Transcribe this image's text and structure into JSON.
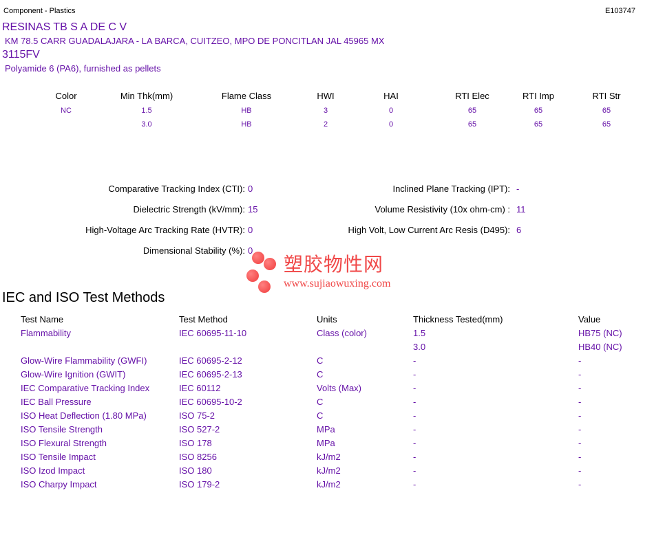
{
  "header": {
    "category": "Component - Plastics",
    "file_number": "E103747"
  },
  "company": {
    "name": "RESINAS TB S A DE C V",
    "address": "KM 78.5 CARR GUADALAJARA - LA BARCA, CUITZEO, MPO DE PONCITLAN JAL   45965 MX"
  },
  "product": {
    "grade": "3115FV",
    "description": "Polyamide 6 (PA6), furnished as pellets"
  },
  "ratings": {
    "headers": [
      "Color",
      "Min Thk(mm)",
      "Flame Class",
      "HWI",
      "HAI",
      "RTI Elec",
      "RTI Imp",
      "RTI Str"
    ],
    "rows": [
      [
        "NC",
        "1.5",
        "HB",
        "3",
        "0",
        "65",
        "65",
        "65"
      ],
      [
        "",
        "3.0",
        "HB",
        "2",
        "0",
        "65",
        "65",
        "65"
      ]
    ]
  },
  "properties": {
    "cti": {
      "label": "Comparative Tracking Index (CTI):",
      "value": "0"
    },
    "dielectric": {
      "label": "Dielectric Strength (kV/mm):",
      "value": "15"
    },
    "hvtr": {
      "label": "High-Voltage Arc Tracking Rate (HVTR):",
      "value": "0"
    },
    "dimensional": {
      "label": "Dimensional Stability (%):",
      "value": "0"
    },
    "ipt": {
      "label": "Inclined Plane Tracking (IPT):",
      "value": "-"
    },
    "volume": {
      "label": "Volume Resistivity (10x ohm-cm) :",
      "value": "11"
    },
    "d495": {
      "label": "High Volt, Low Current Arc Resis (D495):",
      "value": "6"
    }
  },
  "watermark": {
    "cn": "塑胶物性网",
    "url": "www.sujiaowuxing.com",
    "color": "#f04848"
  },
  "tests": {
    "title": "IEC and ISO Test Methods",
    "headers": [
      "Test Name",
      "Test Method",
      "Units",
      "Thickness Tested(mm)",
      "Value"
    ],
    "rows": [
      [
        "Flammability",
        "IEC 60695-11-10",
        "Class (color)",
        "1.5",
        "HB75 (NC)"
      ],
      [
        "",
        "",
        "",
        "3.0",
        "HB40 (NC)"
      ],
      [
        "Glow-Wire Flammability (GWFI)",
        "IEC 60695-2-12",
        "C",
        "-",
        "-"
      ],
      [
        "Glow-Wire Ignition (GWIT)",
        "IEC 60695-2-13",
        "C",
        "-",
        "-"
      ],
      [
        "IEC Comparative Tracking Index",
        "IEC 60112",
        "Volts (Max)",
        "-",
        "-"
      ],
      [
        "IEC Ball Pressure",
        "IEC 60695-10-2",
        "C",
        "-",
        "-"
      ],
      [
        "ISO Heat Deflection (1.80 MPa)",
        "ISO 75-2",
        "C",
        "-",
        "-"
      ],
      [
        "ISO Tensile Strength",
        "ISO 527-2",
        "MPa",
        "-",
        "-"
      ],
      [
        "ISO Flexural Strength",
        "ISO 178",
        "MPa",
        "-",
        "-"
      ],
      [
        "ISO Tensile Impact",
        "ISO 8256",
        "kJ/m2",
        "-",
        "-"
      ],
      [
        "ISO Izod Impact",
        "ISO 180",
        "kJ/m2",
        "-",
        "-"
      ],
      [
        "ISO Charpy Impact",
        "ISO 179-2",
        "kJ/m2",
        "-",
        "-"
      ]
    ]
  }
}
